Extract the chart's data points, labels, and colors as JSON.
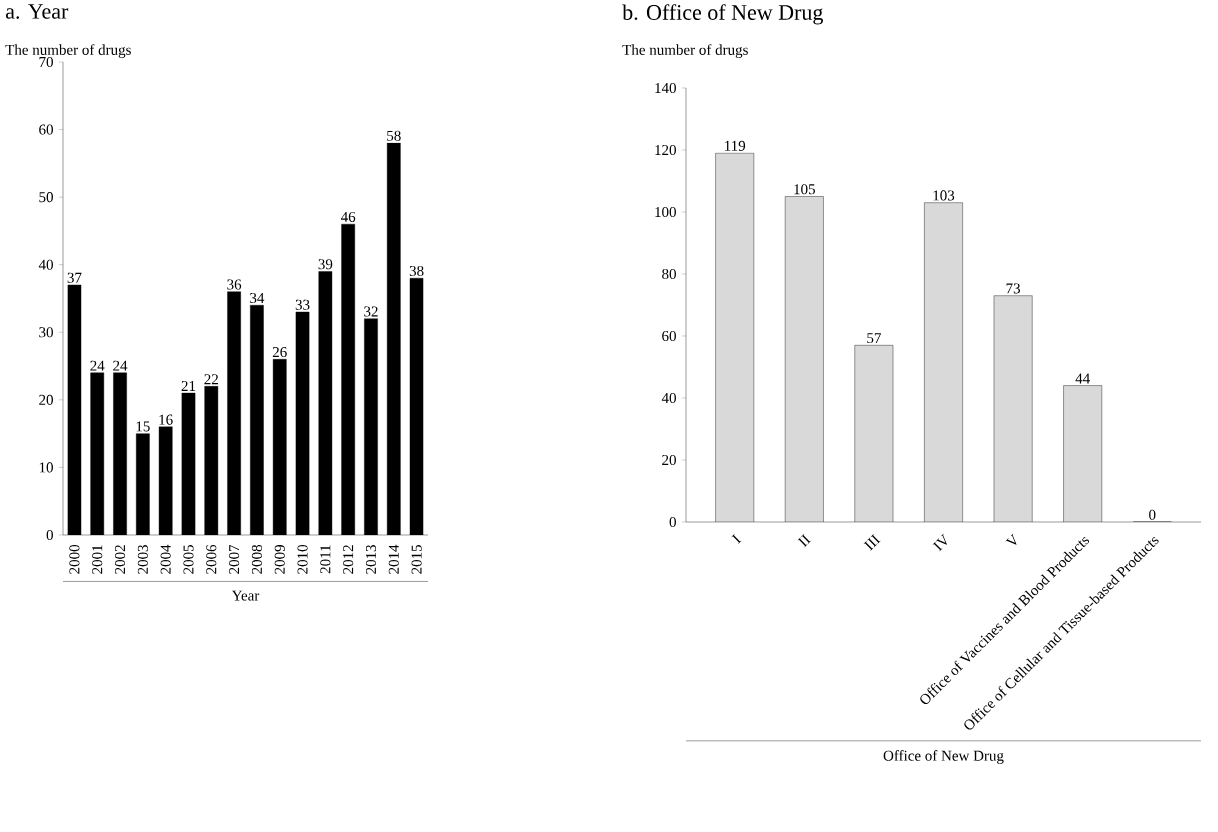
{
  "chart_data": [
    {
      "type": "bar",
      "title": "a. Year",
      "ylabel": "The number of drugs",
      "xlabel": "Year",
      "categories": [
        "2000",
        "2001",
        "2002",
        "2003",
        "2004",
        "2005",
        "2006",
        "2007",
        "2008",
        "2009",
        "2010",
        "2011",
        "2012",
        "2013",
        "2014",
        "2015"
      ],
      "values": [
        37,
        24,
        24,
        15,
        16,
        21,
        22,
        36,
        34,
        26,
        33,
        39,
        46,
        32,
        58,
        38
      ],
      "color": "#000000",
      "ylim": [
        0,
        70
      ],
      "yticks": [
        0,
        10,
        20,
        30,
        40,
        50,
        60,
        70
      ],
      "data_labels": true
    },
    {
      "type": "bar",
      "title": "b. Office of New Drug",
      "ylabel": "The number of drugs",
      "xlabel": "Office of New Drug",
      "categories": [
        "I",
        "II",
        "III",
        "IV",
        "V",
        "Office of Vaccines and Blood Products",
        "Office of Cellular and Tissue-based Products"
      ],
      "values": [
        119,
        105,
        57,
        103,
        73,
        44,
        0
      ],
      "color": "#d9d9d9",
      "ylim": [
        0,
        140
      ],
      "yticks": [
        0,
        20,
        40,
        60,
        80,
        100,
        120,
        140
      ],
      "data_labels": true
    }
  ]
}
